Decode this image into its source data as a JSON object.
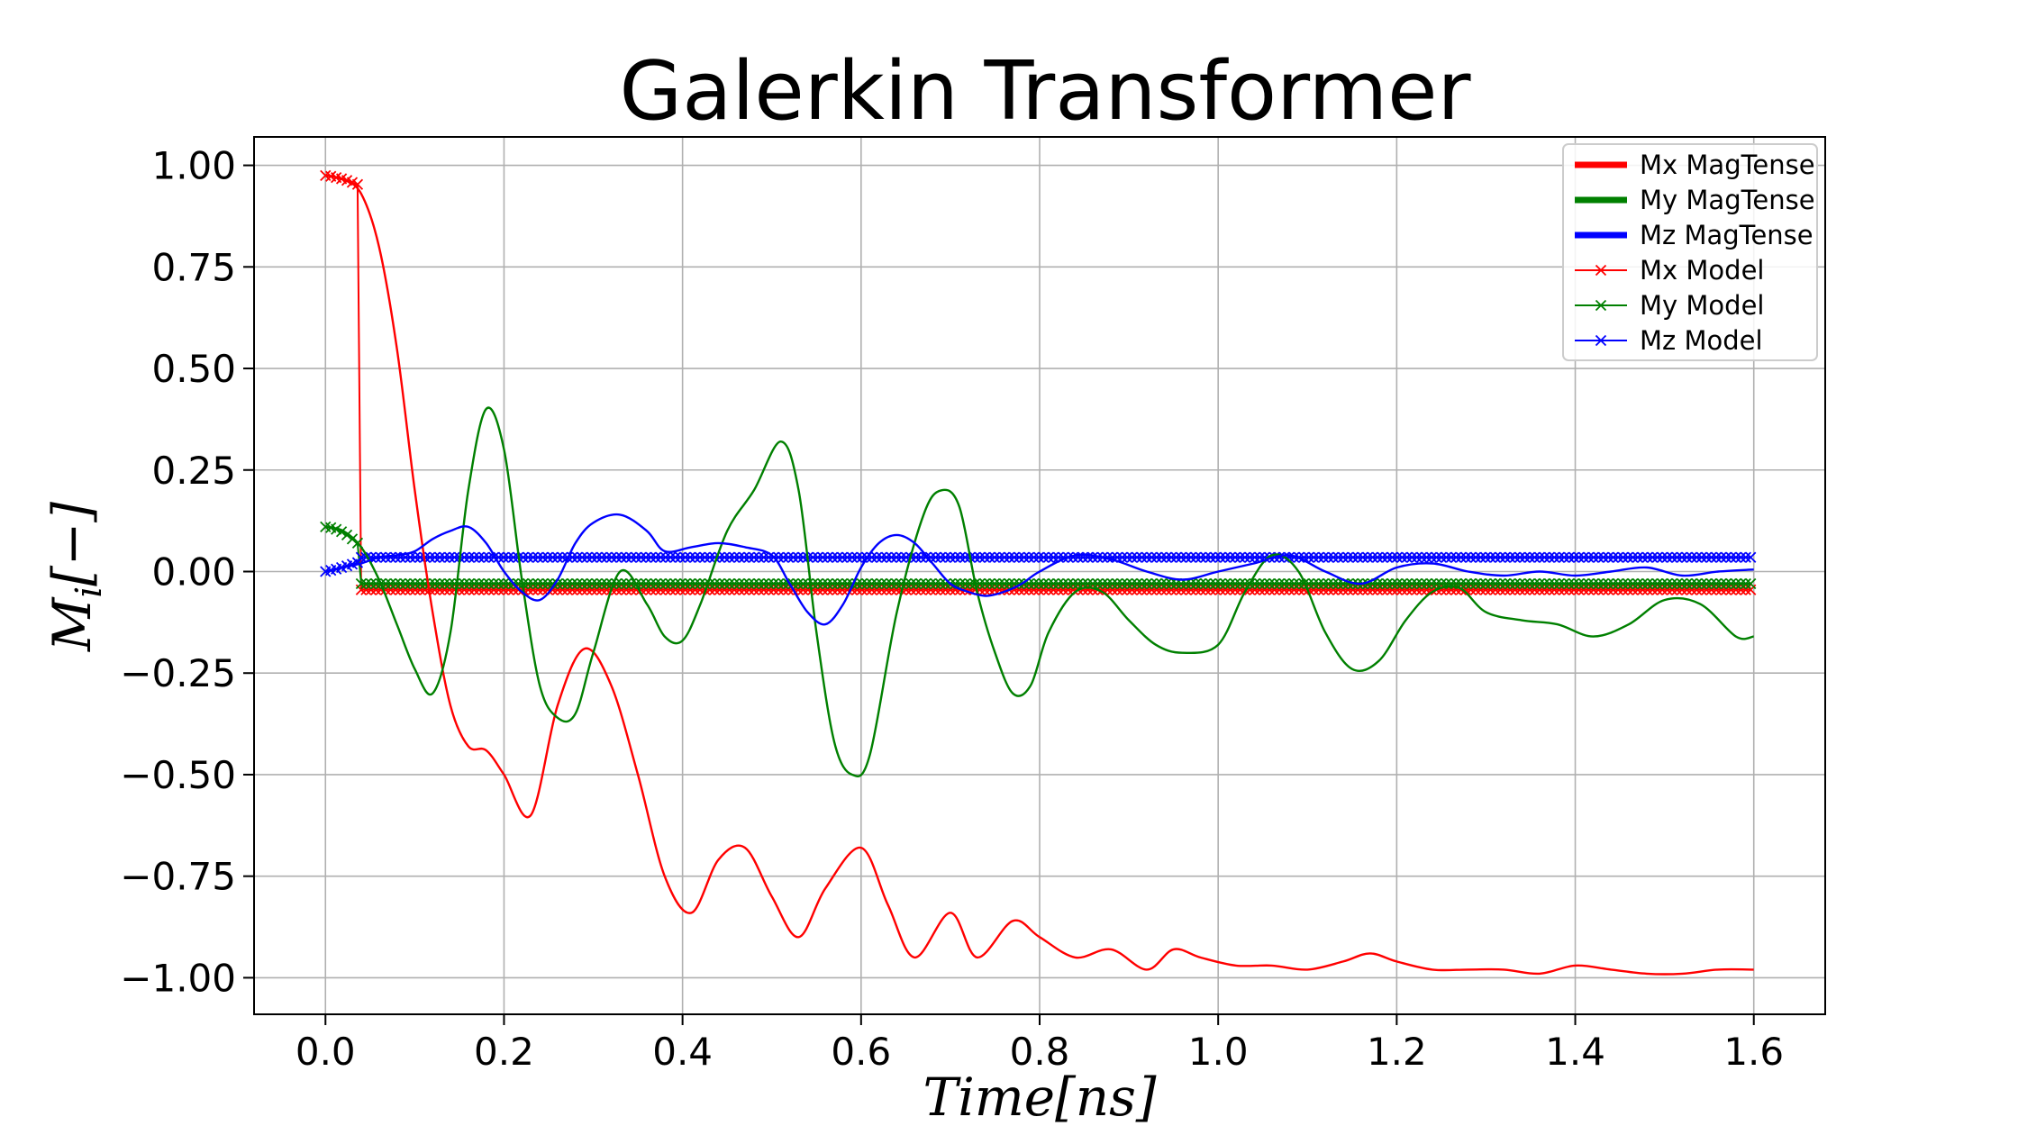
{
  "chart_data": {
    "type": "line",
    "title": "Galerkin Transformer",
    "xlabel_main": "Time",
    "xlabel_unit": "[ns]",
    "ylabel_main": "M",
    "ylabel_sub": "i",
    "ylabel_unit": "[−]",
    "xlim": [
      -0.08,
      1.68
    ],
    "ylim": [
      -1.09,
      1.07
    ],
    "xticks": [
      0.0,
      0.2,
      0.4,
      0.6,
      0.8,
      1.0,
      1.2,
      1.4,
      1.6
    ],
    "xtick_labels": [
      "0.0",
      "0.2",
      "0.4",
      "0.6",
      "0.8",
      "1.0",
      "1.2",
      "1.4",
      "1.6"
    ],
    "yticks": [
      1.0,
      0.75,
      0.5,
      0.25,
      0.0,
      -0.25,
      -0.5,
      -0.75,
      -1.0
    ],
    "ytick_labels": [
      "1.00",
      "0.75",
      "0.50",
      "0.25",
      "0.00",
      "−0.25",
      "−0.50",
      "−0.75",
      "−1.00"
    ],
    "grid": true,
    "legend_position": "top-right",
    "colors": {
      "x": "#ff0000",
      "y": "#008000",
      "z": "#0000ff"
    },
    "series": [
      {
        "name": "Mx MagTense",
        "color": "#ff0000",
        "x": [
          0.0,
          0.02,
          0.04,
          0.06,
          0.08,
          0.1,
          0.12,
          0.14,
          0.16,
          0.18,
          0.2,
          0.23,
          0.26,
          0.29,
          0.32,
          0.35,
          0.38,
          0.41,
          0.44,
          0.47,
          0.5,
          0.53,
          0.56,
          0.6,
          0.63,
          0.66,
          0.7,
          0.73,
          0.77,
          0.8,
          0.84,
          0.88,
          0.92,
          0.95,
          0.98,
          1.02,
          1.06,
          1.1,
          1.14,
          1.17,
          1.2,
          1.24,
          1.28,
          1.32,
          1.36,
          1.4,
          1.44,
          1.48,
          1.52,
          1.56,
          1.6
        ],
        "y": [
          0.975,
          0.965,
          0.93,
          0.8,
          0.55,
          0.2,
          -0.1,
          -0.33,
          -0.43,
          -0.44,
          -0.5,
          -0.6,
          -0.33,
          -0.19,
          -0.28,
          -0.5,
          -0.75,
          -0.84,
          -0.71,
          -0.68,
          -0.8,
          -0.9,
          -0.78,
          -0.68,
          -0.82,
          -0.95,
          -0.84,
          -0.95,
          -0.86,
          -0.9,
          -0.95,
          -0.93,
          -0.98,
          -0.93,
          -0.95,
          -0.97,
          -0.97,
          -0.98,
          -0.96,
          -0.94,
          -0.96,
          -0.98,
          -0.98,
          -0.98,
          -0.99,
          -0.97,
          -0.98,
          -0.99,
          -0.99,
          -0.98,
          -0.98
        ]
      },
      {
        "name": "My MagTense",
        "color": "#008000",
        "x": [
          0.0,
          0.02,
          0.04,
          0.06,
          0.08,
          0.1,
          0.12,
          0.14,
          0.16,
          0.18,
          0.2,
          0.22,
          0.24,
          0.26,
          0.28,
          0.3,
          0.33,
          0.36,
          0.38,
          0.4,
          0.42,
          0.45,
          0.48,
          0.51,
          0.53,
          0.55,
          0.57,
          0.59,
          0.61,
          0.64,
          0.67,
          0.69,
          0.71,
          0.73,
          0.75,
          0.77,
          0.79,
          0.81,
          0.84,
          0.87,
          0.9,
          0.93,
          0.96,
          1.0,
          1.03,
          1.06,
          1.09,
          1.12,
          1.15,
          1.18,
          1.21,
          1.24,
          1.27,
          1.3,
          1.34,
          1.38,
          1.42,
          1.46,
          1.5,
          1.54,
          1.58,
          1.6
        ],
        "y": [
          0.11,
          0.1,
          0.06,
          -0.02,
          -0.13,
          -0.24,
          -0.3,
          -0.15,
          0.2,
          0.4,
          0.3,
          -0.02,
          -0.28,
          -0.36,
          -0.35,
          -0.2,
          0.0,
          -0.08,
          -0.16,
          -0.17,
          -0.08,
          0.1,
          0.2,
          0.32,
          0.2,
          -0.15,
          -0.42,
          -0.5,
          -0.45,
          -0.1,
          0.14,
          0.2,
          0.16,
          -0.05,
          -0.2,
          -0.3,
          -0.28,
          -0.15,
          -0.05,
          -0.05,
          -0.12,
          -0.18,
          -0.2,
          -0.18,
          -0.05,
          0.04,
          0.0,
          -0.15,
          -0.24,
          -0.22,
          -0.12,
          -0.05,
          -0.04,
          -0.1,
          -0.12,
          -0.13,
          -0.16,
          -0.13,
          -0.07,
          -0.08,
          -0.16,
          -0.16
        ]
      },
      {
        "name": "Mz MagTense",
        "color": "#0000ff",
        "x": [
          0.0,
          0.02,
          0.04,
          0.06,
          0.08,
          0.1,
          0.12,
          0.14,
          0.16,
          0.18,
          0.2,
          0.22,
          0.24,
          0.26,
          0.28,
          0.3,
          0.33,
          0.36,
          0.38,
          0.41,
          0.44,
          0.47,
          0.5,
          0.52,
          0.54,
          0.56,
          0.58,
          0.6,
          0.62,
          0.64,
          0.66,
          0.68,
          0.7,
          0.72,
          0.74,
          0.76,
          0.78,
          0.8,
          0.84,
          0.88,
          0.92,
          0.96,
          1.0,
          1.04,
          1.08,
          1.12,
          1.16,
          1.2,
          1.24,
          1.28,
          1.32,
          1.36,
          1.4,
          1.44,
          1.48,
          1.52,
          1.56,
          1.6
        ],
        "y": [
          0.0,
          0.01,
          0.02,
          0.035,
          0.04,
          0.05,
          0.08,
          0.1,
          0.11,
          0.07,
          0.0,
          -0.05,
          -0.07,
          -0.02,
          0.07,
          0.12,
          0.14,
          0.1,
          0.05,
          0.06,
          0.07,
          0.06,
          0.04,
          -0.03,
          -0.1,
          -0.13,
          -0.08,
          0.01,
          0.07,
          0.09,
          0.07,
          0.02,
          -0.03,
          -0.05,
          -0.06,
          -0.05,
          -0.03,
          0.0,
          0.04,
          0.03,
          0.0,
          -0.02,
          0.0,
          0.02,
          0.04,
          0.0,
          -0.03,
          0.01,
          0.02,
          0.0,
          -0.01,
          0.0,
          -0.01,
          0.0,
          0.01,
          -0.01,
          0.0,
          0.005
        ]
      },
      {
        "name": "Mx Model",
        "color": "#ff0000",
        "marker": "x",
        "x_start": 0.0,
        "x_end": 1.6,
        "initial_x": [
          0.0,
          0.006,
          0.012,
          0.018,
          0.024,
          0.03,
          0.036
        ],
        "initial_y": [
          0.975,
          0.973,
          0.97,
          0.967,
          0.963,
          0.958,
          0.953
        ],
        "plateau_x_start": 0.04,
        "plateau_y": -0.045
      },
      {
        "name": "My Model",
        "color": "#008000",
        "marker": "x",
        "x_start": 0.0,
        "x_end": 1.6,
        "initial_x": [
          0.0,
          0.006,
          0.012,
          0.018,
          0.024,
          0.03,
          0.036
        ],
        "initial_y": [
          0.11,
          0.108,
          0.104,
          0.098,
          0.09,
          0.08,
          0.07
        ],
        "plateau_x_start": 0.04,
        "plateau_y": -0.03
      },
      {
        "name": "Mz Model",
        "color": "#0000ff",
        "marker": "x",
        "x_start": 0.0,
        "x_end": 1.6,
        "initial_x": [
          0.0,
          0.006,
          0.012,
          0.018,
          0.024,
          0.03,
          0.036
        ],
        "initial_y": [
          0.0,
          0.003,
          0.006,
          0.01,
          0.014,
          0.018,
          0.022
        ],
        "plateau_x_start": 0.04,
        "plateau_y": 0.035
      }
    ]
  }
}
